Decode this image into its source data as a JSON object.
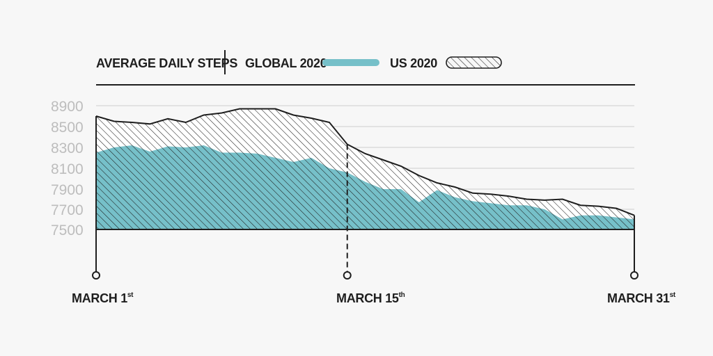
{
  "legend": {
    "title": "AVERAGE DAILY STEPS",
    "series1": "GLOBAL 2020",
    "series2": "US 2020"
  },
  "x_labels": [
    {
      "main": "MARCH 1",
      "sup": "st"
    },
    {
      "main": "MARCH 15",
      "sup": "th"
    },
    {
      "main": "MARCH 31",
      "sup": "st"
    }
  ],
  "colors": {
    "global": "#76c0c9",
    "us": "#ffffff",
    "line": "#1e1e1e",
    "tick": "#bdbdbd"
  },
  "chart_data": {
    "type": "area",
    "title": "AVERAGE DAILY STEPS",
    "ylim": [
      7500,
      8900
    ],
    "y_ticks": [
      8900,
      8500,
      8300,
      8100,
      7900,
      7700,
      7500
    ],
    "x": [
      1,
      2,
      3,
      4,
      5,
      6,
      7,
      8,
      9,
      10,
      11,
      12,
      13,
      14,
      15,
      16,
      17,
      18,
      19,
      20,
      21,
      22,
      23,
      24,
      25,
      26,
      27,
      28,
      29,
      30,
      31
    ],
    "highlight_x": 15,
    "series": [
      {
        "name": "US 2020",
        "values": [
          8700,
          8600,
          8580,
          8550,
          8650,
          8580,
          8720,
          8760,
          8840,
          8840,
          8840,
          8720,
          8660,
          8580,
          8330,
          8240,
          8180,
          8120,
          8030,
          7960,
          7920,
          7860,
          7850,
          7830,
          7800,
          7790,
          7800,
          7740,
          7730,
          7710,
          7640
        ]
      },
      {
        "name": "GLOBAL 2020",
        "values": [
          8250,
          8300,
          8320,
          8260,
          8310,
          8300,
          8320,
          8250,
          8250,
          8240,
          8200,
          8160,
          8200,
          8100,
          8060,
          7970,
          7900,
          7900,
          7770,
          7890,
          7820,
          7780,
          7760,
          7740,
          7740,
          7700,
          7600,
          7640,
          7640,
          7620,
          7600
        ]
      }
    ]
  }
}
